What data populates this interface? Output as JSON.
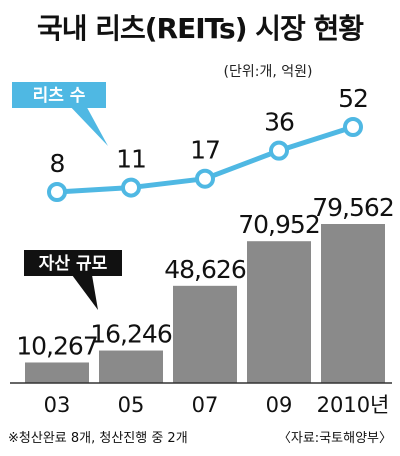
{
  "chart_data": {
    "title": "국내 리츠(REITs) 시장 현황",
    "unit_note": "(단위:개, 억원)",
    "categories": [
      "03",
      "05",
      "07",
      "09",
      "2010년"
    ],
    "series": [
      {
        "name": "리츠 수",
        "type": "line",
        "values": [
          8,
          11,
          17,
          36,
          52
        ],
        "labels": [
          "8",
          "11",
          "17",
          "36",
          "52"
        ]
      },
      {
        "name": "자산 규모",
        "type": "bar",
        "values": [
          10267,
          16246,
          48626,
          70952,
          79562
        ],
        "labels": [
          "10,267",
          "16,246",
          "48,626",
          "70,952",
          "79,562"
        ]
      }
    ],
    "footnote": "※청산완료 8개, 청산진행 중 2개",
    "source": "〈자료:국토해양부〉",
    "colors": {
      "line": "#4fb8e3",
      "line_label_bg": "#4fb8e3",
      "bar": "#8a8a8a",
      "bar_label_bg": "#111111",
      "baseline": "#333333"
    }
  }
}
